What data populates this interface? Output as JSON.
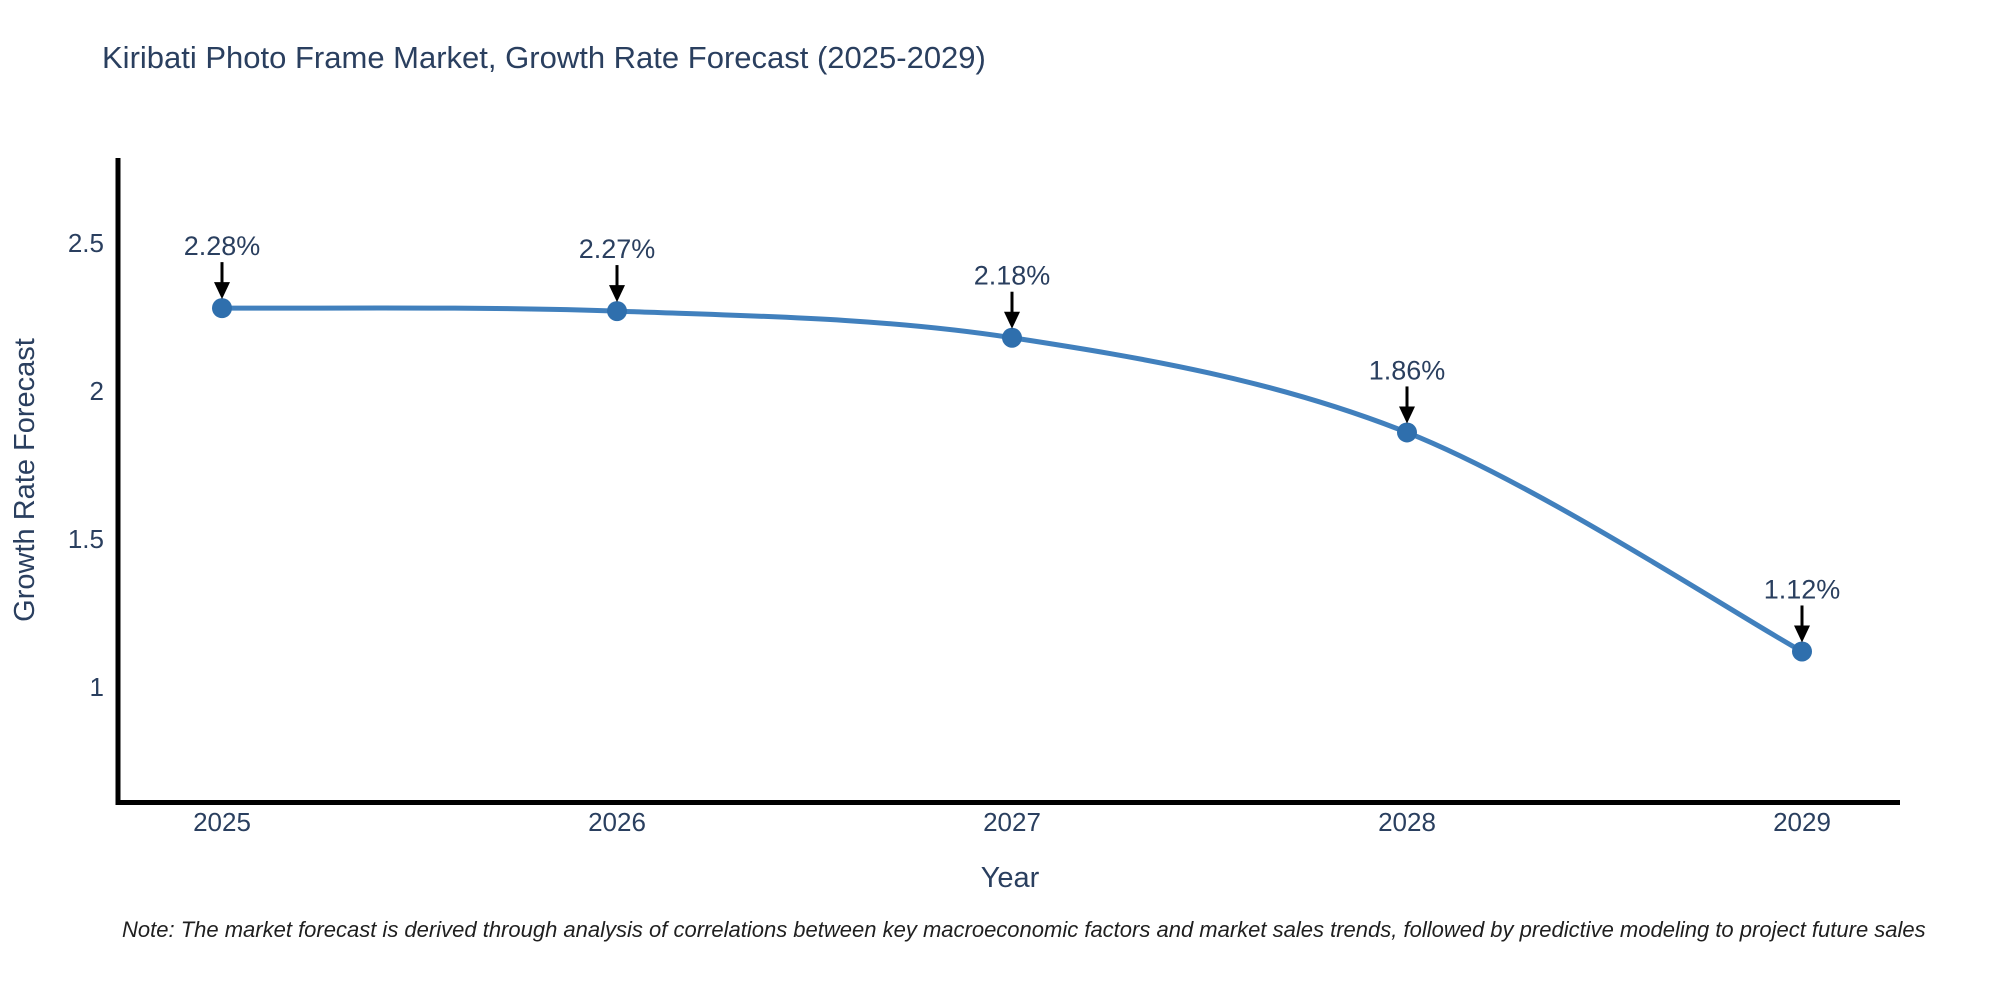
{
  "title": {
    "text": "Kiribati Photo Frame Market, Growth Rate Forecast (2025-2029)"
  },
  "note": {
    "text": "Note: The market forecast is derived through analysis of correlations between key macroeconomic factors and market sales trends, followed by predictive modeling to project future sales"
  },
  "chart_data": {
    "type": "line",
    "title": "Kiribati Photo Frame Market, Growth Rate Forecast (2025-2029)",
    "xlabel": "Year",
    "ylabel": "Growth Rate Forecast",
    "x": [
      2025,
      2026,
      2027,
      2028,
      2029
    ],
    "values": [
      2.28,
      2.27,
      2.18,
      1.86,
      1.12
    ],
    "point_labels": [
      "2.28%",
      "2.27%",
      "2.18%",
      "1.86%",
      "1.12%"
    ],
    "xticks": [
      "2025",
      "2026",
      "2027",
      "2028",
      "2029"
    ],
    "yticks": [
      "1",
      "1.5",
      "2",
      "2.5"
    ],
    "ytick_values": [
      1,
      1.5,
      2,
      2.5
    ],
    "xlim": [
      2024.74,
      2029.24
    ],
    "ylim": [
      0.61,
      2.79
    ],
    "grid": false,
    "legend": false,
    "line_shape": "spline",
    "marker": "circle",
    "annotations_have_arrows": true,
    "colors": {
      "line": "#4180bd",
      "marker": "#2f6fad",
      "text": "#2a3f5f",
      "note_text": "#1f1f1f",
      "arrow": "#000000",
      "axis": "#000000",
      "background": "#ffffff"
    }
  }
}
